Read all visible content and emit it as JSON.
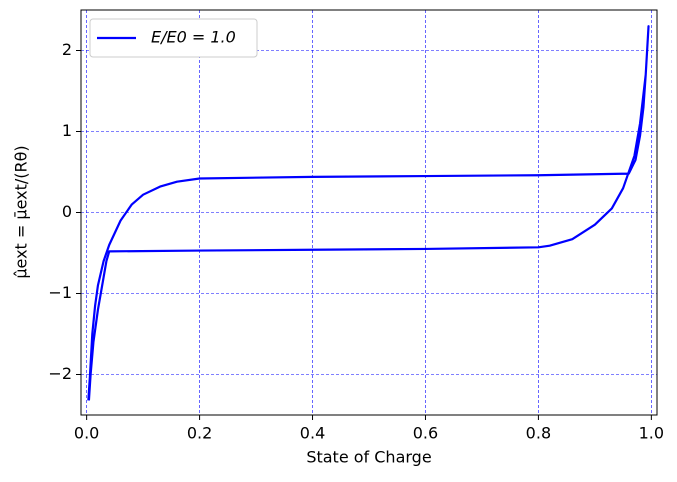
{
  "chart_data": {
    "type": "line",
    "xlabel": "State of Charge",
    "ylabel": "μ̂ext = μ̄ext/(Rθ)",
    "x": [
      0.003,
      0.006,
      0.01,
      0.015,
      0.02,
      0.03,
      0.04,
      0.06,
      0.08,
      0.1,
      0.13,
      0.16,
      0.2,
      0.4,
      0.6,
      0.8,
      0.96,
      0.972,
      0.98,
      0.986,
      0.99,
      0.995,
      0.99,
      0.98,
      0.97,
      0.95,
      0.93,
      0.9,
      0.86,
      0.82,
      0.8,
      0.6,
      0.4,
      0.2,
      0.04,
      0.035,
      0.03,
      0.02,
      0.012,
      0.007,
      0.004
    ],
    "series": [
      {
        "name": "E/E0 = 1.0",
        "color": "#0000ff",
        "values": [
          -2.32,
          -2.0,
          -1.5,
          -1.15,
          -0.9,
          -0.6,
          -0.4,
          -0.1,
          0.1,
          0.22,
          0.32,
          0.38,
          0.42,
          0.44,
          0.45,
          0.46,
          0.48,
          0.65,
          0.95,
          1.3,
          1.7,
          2.3,
          1.7,
          1.1,
          0.7,
          0.3,
          0.05,
          -0.15,
          -0.33,
          -0.41,
          -0.43,
          -0.45,
          -0.46,
          -0.47,
          -0.48,
          -0.6,
          -0.8,
          -1.2,
          -1.6,
          -2.0,
          -2.32
        ]
      }
    ],
    "xlim": [
      -0.01,
      1.01
    ],
    "ylim": [
      -2.5,
      2.5
    ],
    "xticks": [
      {
        "value": 0,
        "label": "0.0"
      },
      0.2,
      0.4,
      0.6,
      0.8,
      {
        "value": 1,
        "label": "1.0"
      }
    ],
    "yticks": [
      {
        "value": -2,
        "label": "−2"
      },
      {
        "value": -1,
        "label": "−1"
      },
      0,
      1,
      2
    ],
    "grid": true,
    "grid_color": "#0000ff",
    "legend": "upper-left"
  }
}
